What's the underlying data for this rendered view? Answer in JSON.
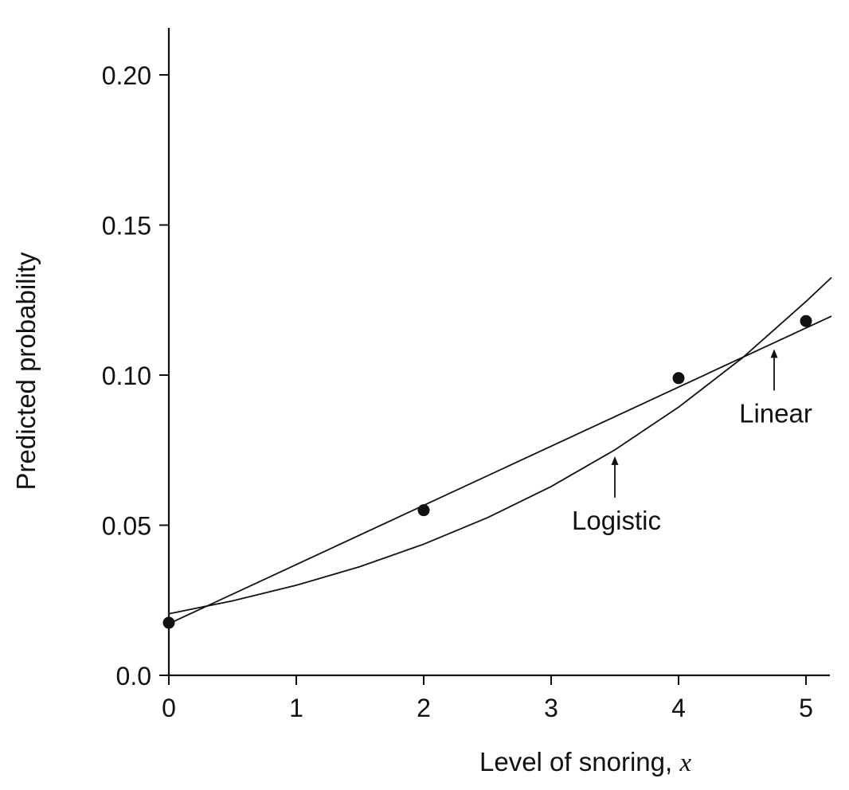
{
  "chart_data": {
    "type": "line",
    "title": "",
    "xlabel": "Level of snoring,",
    "xlabel_var": "x",
    "ylabel": "Predicted probability",
    "xlim": [
      0,
      5.2
    ],
    "ylim": [
      0,
      0.215
    ],
    "x_ticks": [
      0,
      1,
      2,
      3,
      4,
      5
    ],
    "x_tick_labels": [
      "0",
      "1",
      "2",
      "3",
      "4",
      "5"
    ],
    "y_ticks": [
      0,
      0.05,
      0.1,
      0.15,
      0.2
    ],
    "y_tick_labels": [
      "0.0",
      "0.05",
      "0.10",
      "0.15",
      "0.20"
    ],
    "grid": false,
    "legend": "none",
    "observed_points": {
      "x": [
        0,
        2,
        4,
        5
      ],
      "y": [
        0.0175,
        0.055,
        0.099,
        0.118
      ]
    },
    "series": [
      {
        "name": "Linear",
        "x": [
          0,
          1,
          2,
          3,
          4,
          5,
          5.2
        ],
        "y": [
          0.0172,
          0.0369,
          0.0566,
          0.0763,
          0.096,
          0.1157,
          0.1196
        ]
      },
      {
        "name": "Logistic",
        "x": [
          0,
          0.5,
          1,
          1.5,
          2,
          2.5,
          3,
          3.5,
          4,
          4.5,
          5,
          5.2
        ],
        "y": [
          0.0205,
          0.0248,
          0.03,
          0.0362,
          0.0437,
          0.0525,
          0.0629,
          0.0751,
          0.0893,
          0.1057,
          0.1245,
          0.1325
        ]
      }
    ],
    "annotations": [
      {
        "text": "Linear",
        "arrow_x": 4.75,
        "series": "Linear"
      },
      {
        "text": "Logistic",
        "arrow_x": 3.5,
        "series": "Logistic"
      }
    ]
  }
}
